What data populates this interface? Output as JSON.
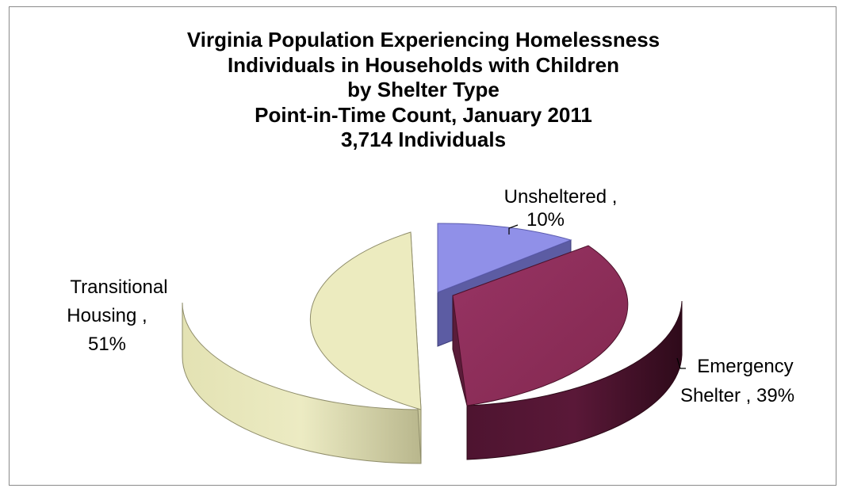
{
  "chart_data": {
    "type": "pie",
    "title_lines": [
      "Virginia Population Experiencing Homelessness",
      "Individuals in Households with Children",
      "by Shelter Type",
      "Point-in-Time Count, January 2011",
      "3,714 Individuals"
    ],
    "slices": [
      {
        "label": "Unsheltered",
        "value": 10,
        "label_lines": [
          "Unsheltered ,",
          "10%"
        ],
        "color": "#9090e8"
      },
      {
        "label": "Emergency Shelter",
        "value": 39,
        "label_lines": [
          "Emergency",
          "Shelter , 39%"
        ],
        "color": "#8e2e5a"
      },
      {
        "label": "Transitional Housing",
        "value": 51,
        "label_lines": [
          "Transitional",
          "Housing ,",
          "51%"
        ],
        "color": "#ecebbf"
      }
    ],
    "unit": "%",
    "exploded": true,
    "view": "3d",
    "legend": "none"
  }
}
